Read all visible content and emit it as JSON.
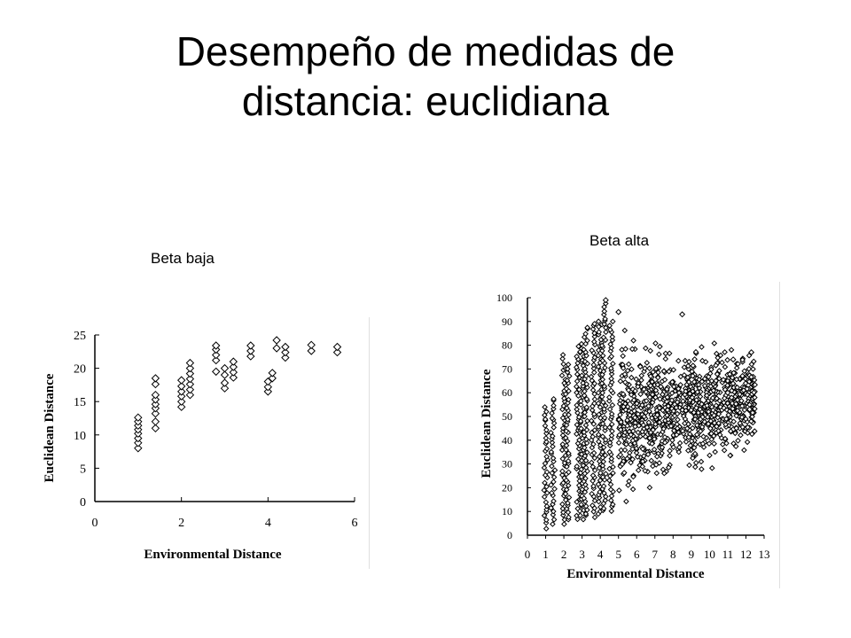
{
  "slide": {
    "title_line1": "Desempeño de medidas de",
    "title_line2": "distancia: euclidiana",
    "caption_left": "Beta baja",
    "caption_right": "Beta alta"
  },
  "chart_data": [
    {
      "type": "scatter",
      "title": "",
      "xlabel": "Environmental Distance",
      "ylabel": "Euclidean Distance",
      "xlim": [
        0,
        6
      ],
      "ylim": [
        0,
        25
      ],
      "x_ticks": [
        0,
        2,
        4,
        6
      ],
      "y_ticks": [
        0,
        5,
        10,
        15,
        20,
        25
      ],
      "grid": false,
      "marker": "open-diamond",
      "points": [
        [
          1.0,
          8.0
        ],
        [
          1.0,
          8.8
        ],
        [
          1.0,
          9.5
        ],
        [
          1.0,
          10.2
        ],
        [
          1.0,
          10.8
        ],
        [
          1.0,
          11.4
        ],
        [
          1.0,
          12.0
        ],
        [
          1.0,
          12.6
        ],
        [
          1.4,
          11.0
        ],
        [
          1.4,
          12.0
        ],
        [
          1.4,
          13.2
        ],
        [
          1.4,
          14.0
        ],
        [
          1.4,
          14.6
        ],
        [
          1.4,
          15.3
        ],
        [
          1.4,
          16.0
        ],
        [
          1.4,
          17.6
        ],
        [
          1.4,
          18.5
        ],
        [
          2.0,
          14.2
        ],
        [
          2.0,
          15.0
        ],
        [
          2.0,
          15.8
        ],
        [
          2.0,
          16.5
        ],
        [
          2.0,
          17.3
        ],
        [
          2.0,
          18.2
        ],
        [
          2.2,
          16.0
        ],
        [
          2.2,
          16.8
        ],
        [
          2.2,
          17.6
        ],
        [
          2.2,
          18.4
        ],
        [
          2.2,
          19.2
        ],
        [
          2.2,
          20.0
        ],
        [
          2.2,
          20.8
        ],
        [
          2.8,
          19.5
        ],
        [
          2.8,
          21.2
        ],
        [
          2.8,
          22.0
        ],
        [
          2.8,
          22.8
        ],
        [
          2.8,
          23.4
        ],
        [
          3.0,
          17.0
        ],
        [
          3.0,
          17.8
        ],
        [
          3.0,
          19.0
        ],
        [
          3.0,
          20.0
        ],
        [
          3.2,
          18.6
        ],
        [
          3.2,
          19.4
        ],
        [
          3.2,
          20.2
        ],
        [
          3.2,
          21.0
        ],
        [
          3.6,
          21.8
        ],
        [
          3.6,
          22.6
        ],
        [
          3.6,
          23.4
        ],
        [
          4.0,
          16.5
        ],
        [
          4.0,
          17.2
        ],
        [
          4.0,
          18.0
        ],
        [
          4.1,
          18.5
        ],
        [
          4.1,
          19.3
        ],
        [
          4.2,
          23.0
        ],
        [
          4.2,
          24.2
        ],
        [
          4.4,
          21.6
        ],
        [
          4.4,
          22.4
        ],
        [
          4.4,
          23.2
        ],
        [
          5.0,
          22.6
        ],
        [
          5.0,
          23.5
        ],
        [
          5.6,
          22.4
        ],
        [
          5.6,
          23.2
        ]
      ]
    },
    {
      "type": "scatter",
      "title": "",
      "xlabel": "Environmental Distance",
      "ylabel": "Euclidean Distance",
      "xlim": [
        0,
        13
      ],
      "ylim": [
        0,
        100
      ],
      "x_ticks": [
        0,
        1,
        2,
        3,
        4,
        5,
        6,
        7,
        8,
        9,
        10,
        11,
        12,
        13
      ],
      "y_ticks": [
        0,
        10,
        20,
        30,
        40,
        50,
        60,
        70,
        80,
        90,
        100
      ],
      "grid": false,
      "marker": "open-diamond",
      "columns": [
        {
          "x": 1.0,
          "y_min": 3,
          "y_max": 55
        },
        {
          "x": 1.4,
          "y_min": 5,
          "y_max": 58
        },
        {
          "x": 2.0,
          "y_min": 5,
          "y_max": 76
        },
        {
          "x": 2.2,
          "y_min": 6,
          "y_max": 72
        },
        {
          "x": 2.8,
          "y_min": 7,
          "y_max": 80
        },
        {
          "x": 3.0,
          "y_min": 7,
          "y_max": 82
        },
        {
          "x": 3.2,
          "y_min": 8,
          "y_max": 88
        },
        {
          "x": 3.6,
          "y_min": 8,
          "y_max": 90
        },
        {
          "x": 4.0,
          "y_min": 9,
          "y_max": 92
        },
        {
          "x": 4.2,
          "y_min": 10,
          "y_max": 98
        },
        {
          "x": 4.6,
          "y_min": 10,
          "y_max": 90
        }
      ],
      "cloud": {
        "x_range": [
          5,
          12.5
        ],
        "y_center_range": [
          48,
          58
        ],
        "y_spread": 22
      },
      "outliers": [
        [
          4.3,
          99
        ],
        [
          5.0,
          94
        ],
        [
          8.5,
          93
        ],
        [
          12.3,
          77
        ],
        [
          12.2,
          53
        ],
        [
          11.3,
          74
        ],
        [
          11.0,
          60
        ]
      ]
    }
  ]
}
